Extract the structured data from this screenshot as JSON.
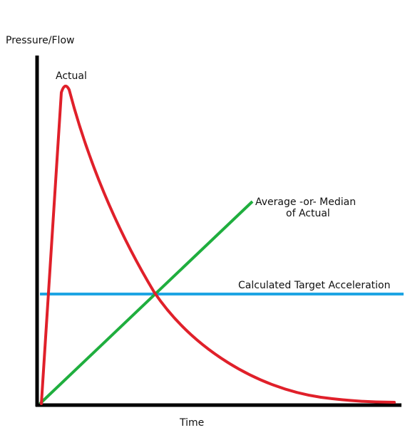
{
  "labels": {
    "y_axis": "Pressure/Flow",
    "x_axis": "Time",
    "actual": "Actual",
    "average_line1": "Average -or- Median",
    "average_line2": "of Actual",
    "target": "Calculated Target Acceleration"
  },
  "colors": {
    "axis": "#000000",
    "actual": "#e0202a",
    "average": "#1fae3e",
    "target": "#1ea5e3"
  }
}
